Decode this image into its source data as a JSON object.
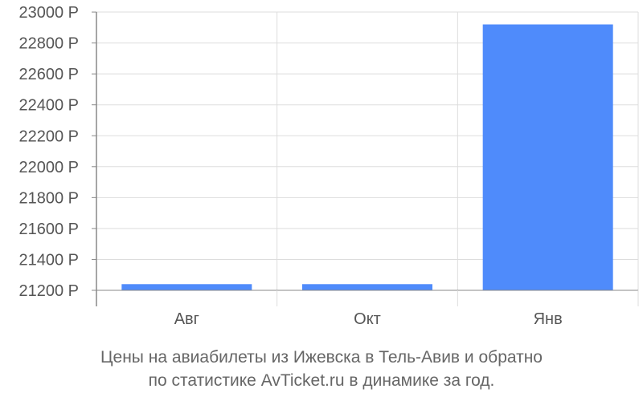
{
  "chart_data": {
    "type": "bar",
    "categories": [
      "Авг",
      "Окт",
      "Янв"
    ],
    "values": [
      21240,
      21240,
      22920
    ],
    "ylim": [
      21100,
      23000
    ],
    "yticks": [
      21200,
      21400,
      21600,
      21800,
      22000,
      22200,
      22400,
      22600,
      22800,
      23000
    ],
    "ytick_labels": [
      "21200 Р",
      "21400 Р",
      "21600 Р",
      "21800 Р",
      "22000 Р",
      "22200 Р",
      "22400 Р",
      "22600 Р",
      "22800 Р",
      "23000 Р"
    ],
    "grid": true,
    "bar_color": "#4f8bfb",
    "grid_color": "#dddddd",
    "axis_color": "#888888"
  },
  "caption": {
    "line1": "Цены на авиабилеты из Ижевска в Тель-Авив и обратно",
    "line2": "по статистике AvTicket.ru в динамике за год."
  }
}
